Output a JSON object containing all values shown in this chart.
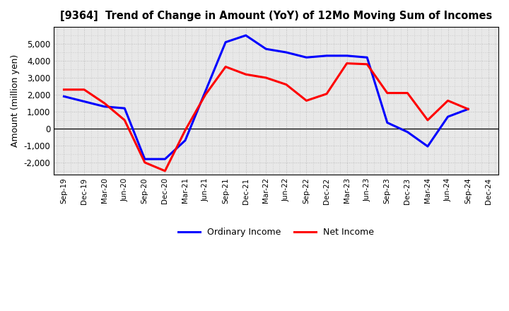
{
  "title": "[9364]  Trend of Change in Amount (YoY) of 12Mo Moving Sum of Incomes",
  "ylabel": "Amount (million yen)",
  "x_labels": [
    "Sep-19",
    "Dec-19",
    "Mar-20",
    "Jun-20",
    "Sep-20",
    "Dec-20",
    "Mar-21",
    "Jun-21",
    "Sep-21",
    "Dec-21",
    "Mar-22",
    "Jun-22",
    "Sep-22",
    "Dec-22",
    "Mar-23",
    "Jun-23",
    "Sep-23",
    "Dec-23",
    "Mar-24",
    "Jun-24",
    "Sep-24",
    "Dec-24"
  ],
  "ordinary_income": [
    1900,
    1600,
    1300,
    1200,
    -1800,
    -1800,
    -700,
    2200,
    5100,
    5500,
    4700,
    4500,
    4200,
    4300,
    4300,
    4200,
    350,
    -200,
    -1050,
    700,
    1150,
    null
  ],
  "net_income": [
    2300,
    2300,
    1500,
    500,
    -2000,
    -2500,
    -100,
    2000,
    3650,
    3200,
    3000,
    2600,
    1650,
    2050,
    3850,
    3800,
    2100,
    2100,
    500,
    1650,
    1150,
    null
  ],
  "ordinary_income_color": "#0000FF",
  "net_income_color": "#FF0000",
  "ylim": [
    -2700,
    6000
  ],
  "yticks": [
    -2000,
    -1000,
    0,
    1000,
    2000,
    3000,
    4000,
    5000
  ],
  "plot_bgcolor": "#E8E8E8",
  "background_color": "#FFFFFF",
  "grid_color": "#BBBBBB",
  "legend_labels": [
    "Ordinary Income",
    "Net Income"
  ],
  "line_width": 2.2
}
